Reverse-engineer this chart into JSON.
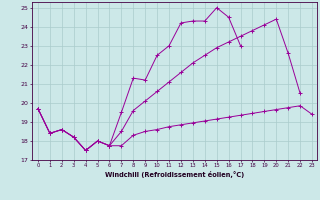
{
  "xlabel": "Windchill (Refroidissement éolien,°C)",
  "bg_color": "#cce8e8",
  "line_color": "#990099",
  "grid_color": "#aacccc",
  "xlim": [
    -0.5,
    23.4
  ],
  "ylim": [
    17,
    25.3
  ],
  "yticks": [
    17,
    18,
    19,
    20,
    21,
    22,
    23,
    24,
    25
  ],
  "xticks": [
    0,
    1,
    2,
    3,
    4,
    5,
    6,
    7,
    8,
    9,
    10,
    11,
    12,
    13,
    14,
    15,
    16,
    17,
    18,
    19,
    20,
    21,
    22,
    23
  ],
  "line1_x": [
    0,
    1,
    2,
    3,
    4,
    5,
    6,
    7,
    8,
    9,
    10,
    11,
    12,
    13,
    14,
    15,
    16,
    17,
    18,
    19,
    20,
    21,
    22,
    23
  ],
  "line1_y": [
    19.7,
    18.4,
    18.6,
    18.2,
    17.5,
    18.0,
    17.75,
    17.75,
    18.3,
    18.5,
    18.6,
    18.75,
    18.85,
    18.95,
    19.05,
    19.15,
    19.25,
    19.35,
    19.45,
    19.55,
    19.65,
    19.75,
    19.85,
    19.4
  ],
  "line2_x": [
    0,
    1,
    2,
    3,
    4,
    5,
    6,
    7,
    8,
    9,
    10,
    11,
    12,
    13,
    14,
    15,
    16,
    17,
    18,
    19,
    20,
    21,
    22,
    23
  ],
  "line2_y": [
    19.7,
    18.4,
    18.6,
    18.2,
    17.5,
    18.0,
    17.75,
    18.5,
    19.6,
    20.1,
    20.6,
    21.1,
    21.6,
    22.1,
    22.5,
    22.9,
    23.2,
    23.5,
    23.8,
    24.1,
    24.4,
    22.6,
    20.5,
    null
  ],
  "line3_x": [
    0,
    1,
    2,
    3,
    4,
    5,
    6,
    7,
    8,
    9,
    10,
    11,
    12,
    13,
    14,
    15,
    16,
    17,
    18,
    19,
    20,
    21,
    22,
    23
  ],
  "line3_y": [
    19.7,
    18.4,
    18.6,
    18.2,
    17.5,
    18.0,
    17.75,
    19.5,
    21.3,
    21.2,
    22.5,
    23.0,
    24.2,
    24.3,
    24.3,
    25.0,
    24.5,
    23.0,
    null,
    null,
    null,
    null,
    null,
    null
  ]
}
